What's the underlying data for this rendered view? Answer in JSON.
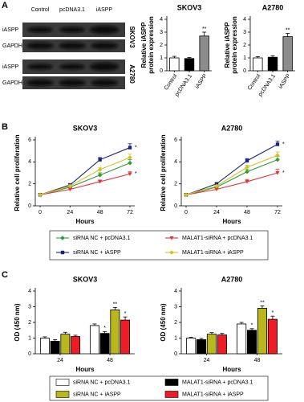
{
  "panels": [
    "A",
    "B",
    "C"
  ],
  "blot": {
    "lanes": [
      "Control",
      "pcDNA3.1",
      "iASPP"
    ],
    "cell_lines": [
      {
        "name": "SKOV3",
        "rows": [
          "iASPP",
          "GAPDH"
        ]
      },
      {
        "name": "A2780",
        "rows": [
          "iASPP",
          "GAPDH"
        ]
      }
    ]
  },
  "chart_data": [
    {
      "type": "bar",
      "title": "SKOV3",
      "y_label": [
        "Relative iASPP",
        "protein expression"
      ],
      "categories": [
        "Control",
        "pcDNA3.1",
        "iASPP"
      ],
      "values": [
        1.0,
        0.95,
        2.7
      ],
      "errors": [
        0.12,
        0.08,
        0.3
      ],
      "colors": [
        "#ffffff",
        "#000000",
        "#8c8c8c"
      ],
      "markers": [
        null,
        null,
        "**"
      ],
      "ylim": [
        0,
        4
      ],
      "yticks": [
        0,
        1,
        2,
        3,
        4
      ]
    },
    {
      "type": "bar",
      "title": "A2780",
      "y_label": [
        "Relative iASPP",
        "protein expression"
      ],
      "categories": [
        "Control",
        "pcDNA3.1",
        "iASPP"
      ],
      "values": [
        1.0,
        1.05,
        2.65
      ],
      "errors": [
        0.1,
        0.12,
        0.25
      ],
      "colors": [
        "#ffffff",
        "#000000",
        "#8c8c8c"
      ],
      "markers": [
        null,
        null,
        "**"
      ],
      "ylim": [
        0,
        4
      ],
      "yticks": [
        0,
        1,
        2,
        3,
        4
      ]
    },
    {
      "type": "line",
      "title": "SKOV3",
      "y_label": "Relative cell proliferation",
      "x_label": "Hours",
      "x": [
        0,
        24,
        48,
        72
      ],
      "xlim": [
        0,
        72
      ],
      "xticks": [
        0,
        24,
        48,
        72
      ],
      "ylim": [
        0,
        6
      ],
      "yticks": [
        0,
        2,
        4,
        6
      ],
      "legend": "bottom",
      "series": [
        {
          "name": "siRNA NC + pcDNA3.1",
          "color": "#2e9a3c",
          "values": [
            1,
            1.7,
            2.8,
            3.9
          ],
          "errors": [
            0.05,
            0.1,
            0.2,
            0.3
          ],
          "markers": [
            null,
            null,
            null,
            null
          ]
        },
        {
          "name": "MALAT1-siRNA + pcDNA3.1",
          "color": "#e0343a",
          "values": [
            1,
            1.5,
            2.2,
            2.9
          ],
          "errors": [
            0.05,
            0.1,
            0.15,
            0.2
          ],
          "markers": [
            null,
            null,
            null,
            "*"
          ]
        },
        {
          "name": "siRNA NC + iASPP",
          "color": "#1a237e",
          "values": [
            1,
            1.9,
            4.2,
            5.3
          ],
          "errors": [
            0.05,
            0.1,
            0.2,
            0.35
          ],
          "markers": [
            null,
            null,
            null,
            "*"
          ]
        },
        {
          "name": "MALAT1-siRNA + iASPP",
          "color": "#d4c21e",
          "values": [
            1,
            1.8,
            3.3,
            4.4
          ],
          "errors": [
            0.05,
            0.1,
            0.2,
            0.3
          ],
          "markers": [
            null,
            null,
            null,
            null
          ]
        }
      ]
    },
    {
      "type": "line",
      "title": "A2780",
      "y_label": "Relative cell proliferation",
      "x_label": "Hours",
      "x": [
        0,
        24,
        48,
        72
      ],
      "xlim": [
        0,
        72
      ],
      "xticks": [
        0,
        24,
        48,
        72
      ],
      "ylim": [
        0,
        6
      ],
      "yticks": [
        0,
        2,
        4,
        6
      ],
      "series": [
        {
          "name": "siRNA NC + pcDNA3.1",
          "color": "#2e9a3c",
          "values": [
            1,
            1.7,
            3.1,
            4.2
          ],
          "errors": [
            0.05,
            0.1,
            0.2,
            0.3
          ],
          "markers": [
            null,
            null,
            null,
            null
          ]
        },
        {
          "name": "MALAT1-siRNA + pcDNA3.1",
          "color": "#e0343a",
          "values": [
            1,
            1.5,
            2.2,
            3.0
          ],
          "errors": [
            0.05,
            0.1,
            0.2,
            0.35
          ],
          "markers": [
            null,
            null,
            null,
            "*"
          ]
        },
        {
          "name": "siRNA NC + iASPP",
          "color": "#1a237e",
          "values": [
            1,
            2.0,
            4.1,
            5.6
          ],
          "errors": [
            0.05,
            0.1,
            0.2,
            0.3
          ],
          "markers": [
            null,
            null,
            null,
            "*"
          ]
        },
        {
          "name": "MALAT1-siRNA + iASPP",
          "color": "#d4c21e",
          "values": [
            1,
            1.8,
            3.5,
            4.6
          ],
          "errors": [
            0.05,
            0.1,
            0.2,
            0.3
          ],
          "markers": [
            null,
            null,
            null,
            null
          ]
        }
      ]
    },
    {
      "type": "bar",
      "title": "SKOV3",
      "y_label": "OD (450 nm)",
      "x_label": "Hours",
      "categories": [
        "24",
        "48"
      ],
      "ylim": [
        0,
        4
      ],
      "yticks": [
        0,
        1,
        2,
        3,
        4
      ],
      "legend": "bottom",
      "series": [
        {
          "name": "siRNA NC + pcDNA3.1",
          "color": "#ffffff",
          "values": [
            1.0,
            1.8
          ],
          "errors": [
            0.08,
            0.1
          ],
          "markers": [
            null,
            null
          ]
        },
        {
          "name": "MALAT1-siRNA + pcDNA3.1",
          "color": "#000000",
          "values": [
            0.8,
            1.3
          ],
          "errors": [
            0.1,
            0.12
          ],
          "markers": [
            null,
            "*"
          ]
        },
        {
          "name": "siRNA NC + iASPP",
          "color": "#b8b81e",
          "values": [
            1.25,
            2.8
          ],
          "errors": [
            0.12,
            0.15
          ],
          "markers": [
            null,
            "**"
          ]
        },
        {
          "name": "MALAT1-siRNA + iASPP",
          "color": "#ee1c24",
          "values": [
            1.1,
            2.15
          ],
          "errors": [
            0.08,
            0.2
          ],
          "markers": [
            null,
            "*"
          ]
        }
      ]
    },
    {
      "type": "bar",
      "title": "A2780",
      "y_label": "OD (450 nm)",
      "x_label": "Hours",
      "categories": [
        "24",
        "48"
      ],
      "ylim": [
        0,
        4
      ],
      "yticks": [
        0,
        1,
        2,
        3,
        4
      ],
      "series": [
        {
          "name": "siRNA NC + pcDNA3.1",
          "color": "#ffffff",
          "values": [
            1.0,
            1.9
          ],
          "errors": [
            0.05,
            0.1
          ],
          "markers": [
            null,
            null
          ]
        },
        {
          "name": "MALAT1-siRNA + pcDNA3.1",
          "color": "#000000",
          "values": [
            0.9,
            1.5
          ],
          "errors": [
            0.08,
            0.1
          ],
          "markers": [
            null,
            "*"
          ]
        },
        {
          "name": "siRNA NC + iASPP",
          "color": "#b8b81e",
          "values": [
            1.25,
            2.9
          ],
          "errors": [
            0.1,
            0.15
          ],
          "markers": [
            null,
            "**"
          ]
        },
        {
          "name": "MALAT1-siRNA + iASPP",
          "color": "#ee1c24",
          "values": [
            1.2,
            2.2
          ],
          "errors": [
            0.1,
            0.2
          ],
          "markers": [
            null,
            "*"
          ]
        }
      ]
    }
  ]
}
